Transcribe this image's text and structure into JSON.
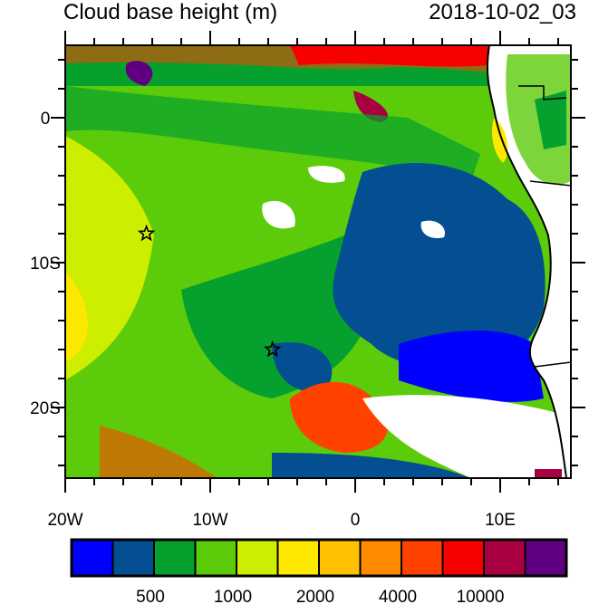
{
  "title": "Cloud base height (m)",
  "timestamp": "2018-10-02_03",
  "map": {
    "lon_range": [
      -20,
      15
    ],
    "lat_range": [
      -25,
      5
    ],
    "x_ticks": [
      {
        "lon": -20,
        "label": "20W"
      },
      {
        "lon": -10,
        "label": "10W"
      },
      {
        "lon": 0,
        "label": "0"
      },
      {
        "lon": 10,
        "label": "10E"
      }
    ],
    "y_ticks": [
      {
        "lat": 0,
        "label": "0"
      },
      {
        "lat": -10,
        "label": "10S"
      },
      {
        "lat": -20,
        "label": "20S"
      }
    ],
    "markers": [
      {
        "name": "star",
        "lon": -14.4,
        "lat": -8.0
      },
      {
        "name": "star",
        "lon": -5.7,
        "lat": -16.0
      }
    ],
    "missing_color": "#ffffff",
    "coastline_color": "#000000"
  },
  "colorbar": {
    "colors": [
      "#0000ff",
      "#034f91",
      "#05a02d",
      "#5ccb0a",
      "#cdee00",
      "#ffe800",
      "#ffc000",
      "#ff8a00",
      "#ff4200",
      "#f70000",
      "#a80040",
      "#600080"
    ],
    "labels": [
      {
        "after_box": 2,
        "text": "500"
      },
      {
        "after_box": 4,
        "text": "1000"
      },
      {
        "after_box": 6,
        "text": "2000"
      },
      {
        "after_box": 8,
        "text": "4000"
      },
      {
        "after_box": 10,
        "text": "10000"
      }
    ]
  }
}
